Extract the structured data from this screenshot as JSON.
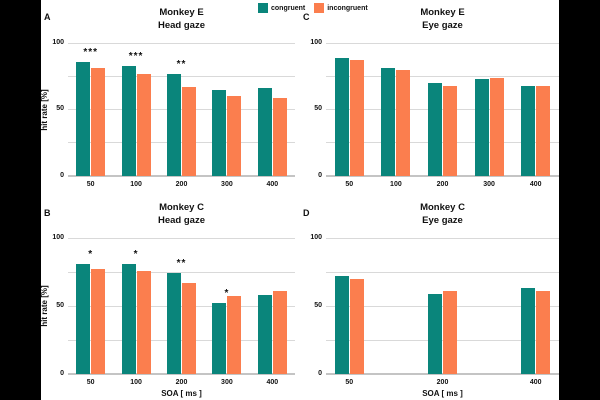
{
  "figure": {
    "background_color": "#ffffff",
    "letterbox_color": "#000000",
    "gridline_color": "#d9d9d9",
    "baseline_color": "#c4c4c4"
  },
  "legend": {
    "items": [
      {
        "name": "congruent",
        "label": "congruent",
        "color": "#0a857b"
      },
      {
        "name": "incongruent",
        "label": "incongruent",
        "color": "#fb7e4e"
      }
    ]
  },
  "chart_data": [
    {
      "type": "bar",
      "panel": "A",
      "title": "Monkey E",
      "subtitle": "Head gaze",
      "ylabel": "hit rate [%]",
      "xlabel": "",
      "categories": [
        "50",
        "100",
        "200",
        "300",
        "400"
      ],
      "slots": [
        0,
        1,
        2,
        3,
        4
      ],
      "n_slots": 5,
      "series": [
        {
          "name": "congruent",
          "color": "#0a857b",
          "values": [
            86,
            83,
            77,
            65,
            66
          ]
        },
        {
          "name": "incongruent",
          "color": "#fb7e4e",
          "values": [
            81,
            77,
            67,
            60,
            59
          ]
        }
      ],
      "significance": [
        "***",
        "***",
        "**",
        "",
        ""
      ],
      "ylim": [
        0,
        100
      ],
      "yticks": [
        0,
        50,
        100
      ],
      "gridlines": [
        25,
        50,
        75,
        100
      ],
      "legend_position": "top-center",
      "grid": true
    },
    {
      "type": "bar",
      "panel": "C",
      "title": "Monkey E",
      "subtitle": "Eye gaze",
      "ylabel": "",
      "xlabel": "",
      "categories": [
        "50",
        "100",
        "200",
        "300",
        "400"
      ],
      "slots": [
        0,
        1,
        2,
        3,
        4
      ],
      "n_slots": 5,
      "series": [
        {
          "name": "congruent",
          "color": "#0a857b",
          "values": [
            89,
            81,
            70,
            73,
            68
          ]
        },
        {
          "name": "incongruent",
          "color": "#fb7e4e",
          "values": [
            87,
            80,
            68,
            74,
            68
          ]
        }
      ],
      "significance": [
        "",
        "",
        "",
        "",
        ""
      ],
      "ylim": [
        0,
        100
      ],
      "yticks": [
        0,
        50,
        100
      ],
      "gridlines": [
        25,
        50,
        75,
        100
      ],
      "grid": true
    },
    {
      "type": "bar",
      "panel": "B",
      "title": "Monkey C",
      "subtitle": "Head gaze",
      "ylabel": "hit rate [%]",
      "xlabel": "SOA [ ms ]",
      "categories": [
        "50",
        "100",
        "200",
        "300",
        "400"
      ],
      "slots": [
        0,
        1,
        2,
        3,
        4
      ],
      "n_slots": 5,
      "series": [
        {
          "name": "congruent",
          "color": "#0a857b",
          "values": [
            81,
            81,
            74,
            52,
            58
          ]
        },
        {
          "name": "incongruent",
          "color": "#fb7e4e",
          "values": [
            77,
            76,
            67,
            57,
            61
          ]
        }
      ],
      "significance": [
        "*",
        "*",
        "**",
        "*",
        ""
      ],
      "ylim": [
        0,
        100
      ],
      "yticks": [
        0,
        50,
        100
      ],
      "gridlines": [
        25,
        50,
        75,
        100
      ],
      "grid": true
    },
    {
      "type": "bar",
      "panel": "D",
      "title": "Monkey C",
      "subtitle": "Eye gaze",
      "ylabel": "",
      "xlabel": "SOA [ ms ]",
      "categories": [
        "50",
        "200",
        "400"
      ],
      "slots": [
        0,
        2,
        4
      ],
      "n_slots": 5,
      "series": [
        {
          "name": "congruent",
          "color": "#0a857b",
          "values": [
            72,
            59,
            63
          ]
        },
        {
          "name": "incongruent",
          "color": "#fb7e4e",
          "values": [
            70,
            61,
            61
          ]
        }
      ],
      "significance": [
        "",
        "",
        ""
      ],
      "ylim": [
        0,
        100
      ],
      "yticks": [
        0,
        50,
        100
      ],
      "gridlines": [
        25,
        50,
        75,
        100
      ],
      "grid": true
    }
  ]
}
